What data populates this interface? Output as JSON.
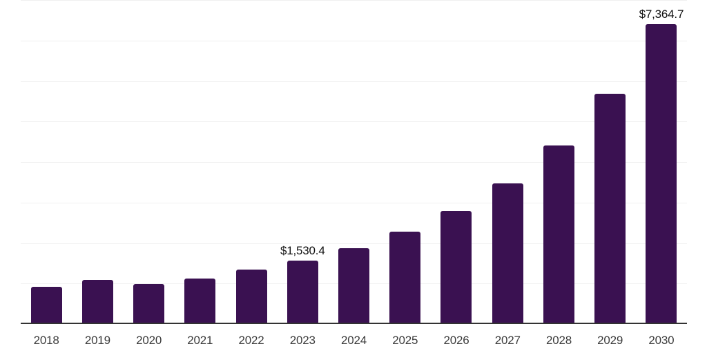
{
  "chart_data": {
    "type": "bar",
    "title": "",
    "xlabel": "",
    "ylabel": "",
    "categories": [
      "2018",
      "2019",
      "2020",
      "2021",
      "2022",
      "2023",
      "2024",
      "2025",
      "2026",
      "2027",
      "2028",
      "2029",
      "2030"
    ],
    "values": [
      890,
      1050,
      950,
      1090,
      1320,
      1530.4,
      1840,
      2240,
      2755,
      3440,
      4380,
      5650,
      7364.7
    ],
    "data_labels": [
      "",
      "",
      "",
      "",
      "",
      "$1,530.4",
      "",
      "",
      "",
      "",
      "",
      "",
      "$7,364.7"
    ],
    "ylim": [
      0,
      8000
    ],
    "gridline_step": 1000,
    "grid": "horizontal",
    "legend": "none",
    "y_axis_tick_labels_visible": false,
    "colors": {
      "bar": "#3a1151",
      "axis_line": "#333333",
      "gridline": "#f0f0f0",
      "data_label": "#111111",
      "tick_label": "#3b3b3b",
      "background": "#ffffff"
    }
  }
}
